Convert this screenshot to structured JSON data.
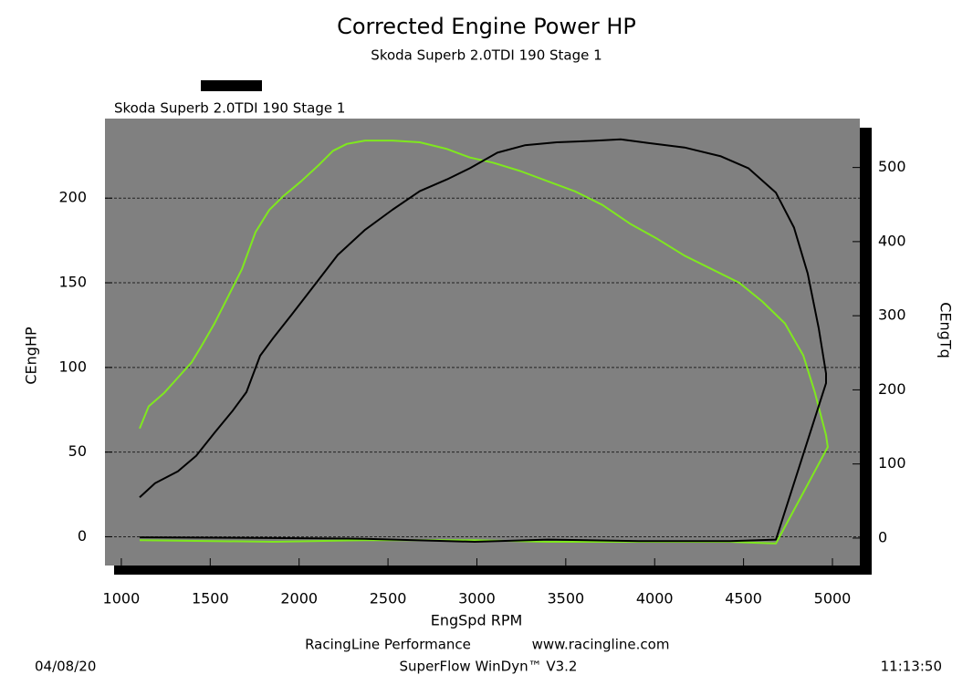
{
  "chart_data": {
    "type": "line",
    "title": "Corrected Engine Power HP",
    "subtitle": "Skoda Superb 2.0TDI 190 Stage 1",
    "run_label": "Skoda Superb 2.0TDI 190 Stage 1",
    "xlabel": "EngSpd RPM",
    "ylabel": "CEngHP",
    "y2label": "CEngTq",
    "xlim": [
      908,
      5154
    ],
    "xticks": [
      1000,
      1500,
      2000,
      2500,
      3000,
      3500,
      4000,
      4500,
      5000
    ],
    "ylim": [
      -17,
      247
    ],
    "yticks": [
      0,
      50,
      100,
      150,
      200
    ],
    "y2lim": [
      -37,
      566
    ],
    "y2ticks": [
      0,
      100,
      200,
      300,
      400,
      500
    ],
    "grid": true,
    "series": [
      {
        "name": "CEngHP",
        "color": "#7fe81e",
        "x": [
          1103,
          1154,
          1241,
          1318,
          1395,
          1447,
          1524,
          1601,
          1678,
          1755,
          1832,
          1909,
          2012,
          2115,
          2191,
          2268,
          2371,
          2525,
          2679,
          2833,
          2961,
          3090,
          3244,
          3398,
          3552,
          3706,
          3860,
          4014,
          4168,
          4322,
          4476,
          4605,
          4733,
          4836,
          4902,
          4964,
          4974,
          4682,
          4425,
          3911,
          3398,
          2987,
          2371,
          1858,
          1103
        ],
        "values": [
          64,
          77,
          85,
          94,
          103,
          112,
          126,
          142,
          158,
          180,
          193,
          201,
          210,
          220,
          228,
          232,
          234,
          234,
          233,
          229,
          224,
          221,
          216,
          210,
          204,
          196,
          185,
          176,
          166,
          158,
          150,
          139,
          126,
          107,
          85,
          60,
          53,
          -4,
          -3,
          -3,
          -3,
          -2,
          -2,
          -3,
          -2
        ]
      },
      {
        "name": "CEngTq",
        "color": "#000000",
        "axis": "y2",
        "x": [
          1103,
          1190,
          1318,
          1421,
          1524,
          1627,
          1704,
          1781,
          1858,
          1960,
          2089,
          2217,
          2371,
          2525,
          2679,
          2833,
          2961,
          3115,
          3269,
          3449,
          3654,
          3809,
          3963,
          4168,
          4373,
          4527,
          4682,
          4784,
          4861,
          4923,
          4964,
          4964,
          4682,
          4425,
          3911,
          3398,
          2987,
          2371,
          1858,
          1103
        ],
        "values": [
          55,
          74,
          90,
          111,
          142,
          172,
          197,
          246,
          271,
          302,
          342,
          382,
          416,
          443,
          468,
          484,
          499,
          520,
          530,
          534,
          536,
          538,
          533,
          527,
          515,
          499,
          466,
          419,
          357,
          283,
          222,
          209,
          -2,
          -4,
          -4,
          -2,
          -5,
          -1,
          0,
          1
        ]
      }
    ],
    "footer": {
      "company": "RacingLine Performance",
      "website": "www.racingline.com",
      "software": "SuperFlow WinDyn™ V3.2",
      "date": "04/08/20",
      "time": "11:13:50"
    }
  }
}
